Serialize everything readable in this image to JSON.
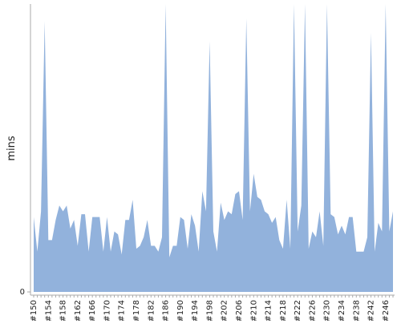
{
  "chart_data": {
    "type": "area",
    "y_label": "mins",
    "color": "#92b2dc",
    "categories": [
      "#150",
      null,
      null,
      null,
      "#154",
      null,
      null,
      null,
      "#158",
      null,
      null,
      null,
      "#162",
      null,
      null,
      null,
      "#166",
      null,
      null,
      null,
      "#170",
      null,
      null,
      null,
      "#174",
      null,
      null,
      null,
      "#178",
      null,
      null,
      null,
      "#182",
      null,
      null,
      null,
      "#186",
      null,
      null,
      null,
      "#190",
      null,
      null,
      null,
      "#194",
      null,
      null,
      null,
      "#198",
      null,
      null,
      null,
      "#202",
      null,
      null,
      null,
      "#206",
      null,
      null,
      null,
      "#210",
      null,
      null,
      null,
      "#214",
      null,
      null,
      null,
      "#218",
      null,
      null,
      null,
      "#222",
      null,
      null,
      null,
      "#226",
      null,
      null,
      null,
      "#230",
      null,
      null,
      null,
      "#234",
      null,
      null,
      null,
      "#238",
      null,
      null,
      null,
      "#242",
      null,
      null,
      null,
      "#246",
      null,
      null
    ],
    "values": [
      26,
      14,
      28,
      94,
      18,
      18,
      25,
      30,
      28,
      30,
      22,
      25,
      16,
      27,
      27,
      14,
      26,
      26,
      26,
      14,
      26,
      14,
      21,
      20,
      13,
      25,
      25,
      32,
      15,
      16,
      19,
      25,
      16,
      16,
      14,
      19,
      100,
      12,
      16,
      16,
      26,
      25,
      15,
      27,
      23,
      14,
      35,
      28,
      87,
      21,
      14,
      31,
      25,
      28,
      27,
      34,
      35,
      25,
      95,
      28,
      41,
      33,
      32,
      28,
      27,
      24,
      26,
      18,
      15,
      32,
      15,
      100,
      21,
      30,
      100,
      15,
      21,
      19,
      28,
      16,
      100,
      27,
      26,
      20,
      23,
      20,
      26,
      26,
      14,
      14,
      14,
      19,
      90,
      14,
      24,
      21,
      100,
      21,
      28
    ],
    "ylim": [
      0,
      100
    ],
    "yticks": [
      0
    ]
  }
}
